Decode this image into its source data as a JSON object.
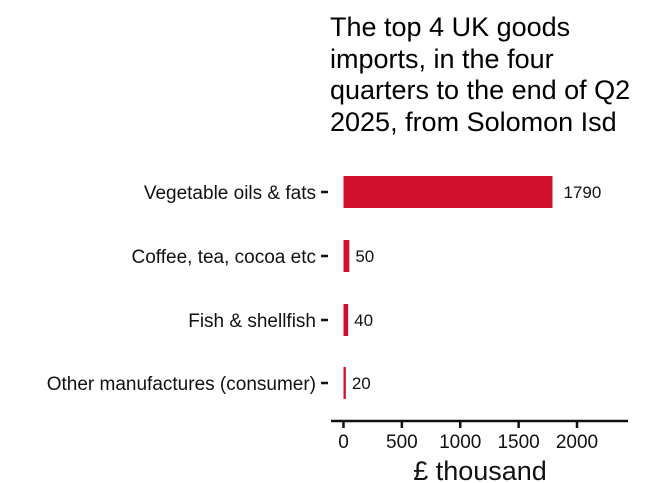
{
  "chart_data": {
    "type": "bar",
    "orientation": "horizontal",
    "title": "The top 4 UK goods\nimports, in the four\nquarters to the end of Q2\n2025, from Solomon Isd",
    "xlabel": "£ thousand",
    "ylabel": "",
    "categories": [
      "Vegetable oils & fats",
      "Coffee, tea, cocoa etc",
      "Fish & shellfish",
      "Other manufactures (consumer)"
    ],
    "values": [
      1790,
      50,
      40,
      20
    ],
    "value_labels": [
      "1790",
      "50",
      "40",
      "20"
    ],
    "xlim": [
      -100,
      2450
    ],
    "xticks": [
      0,
      500,
      1000,
      1500,
      2000
    ],
    "xtick_labels": [
      "0",
      "500",
      "1000",
      "1500",
      "2000"
    ],
    "bar_color": "#d0102f",
    "grid": false,
    "legend": "none"
  }
}
